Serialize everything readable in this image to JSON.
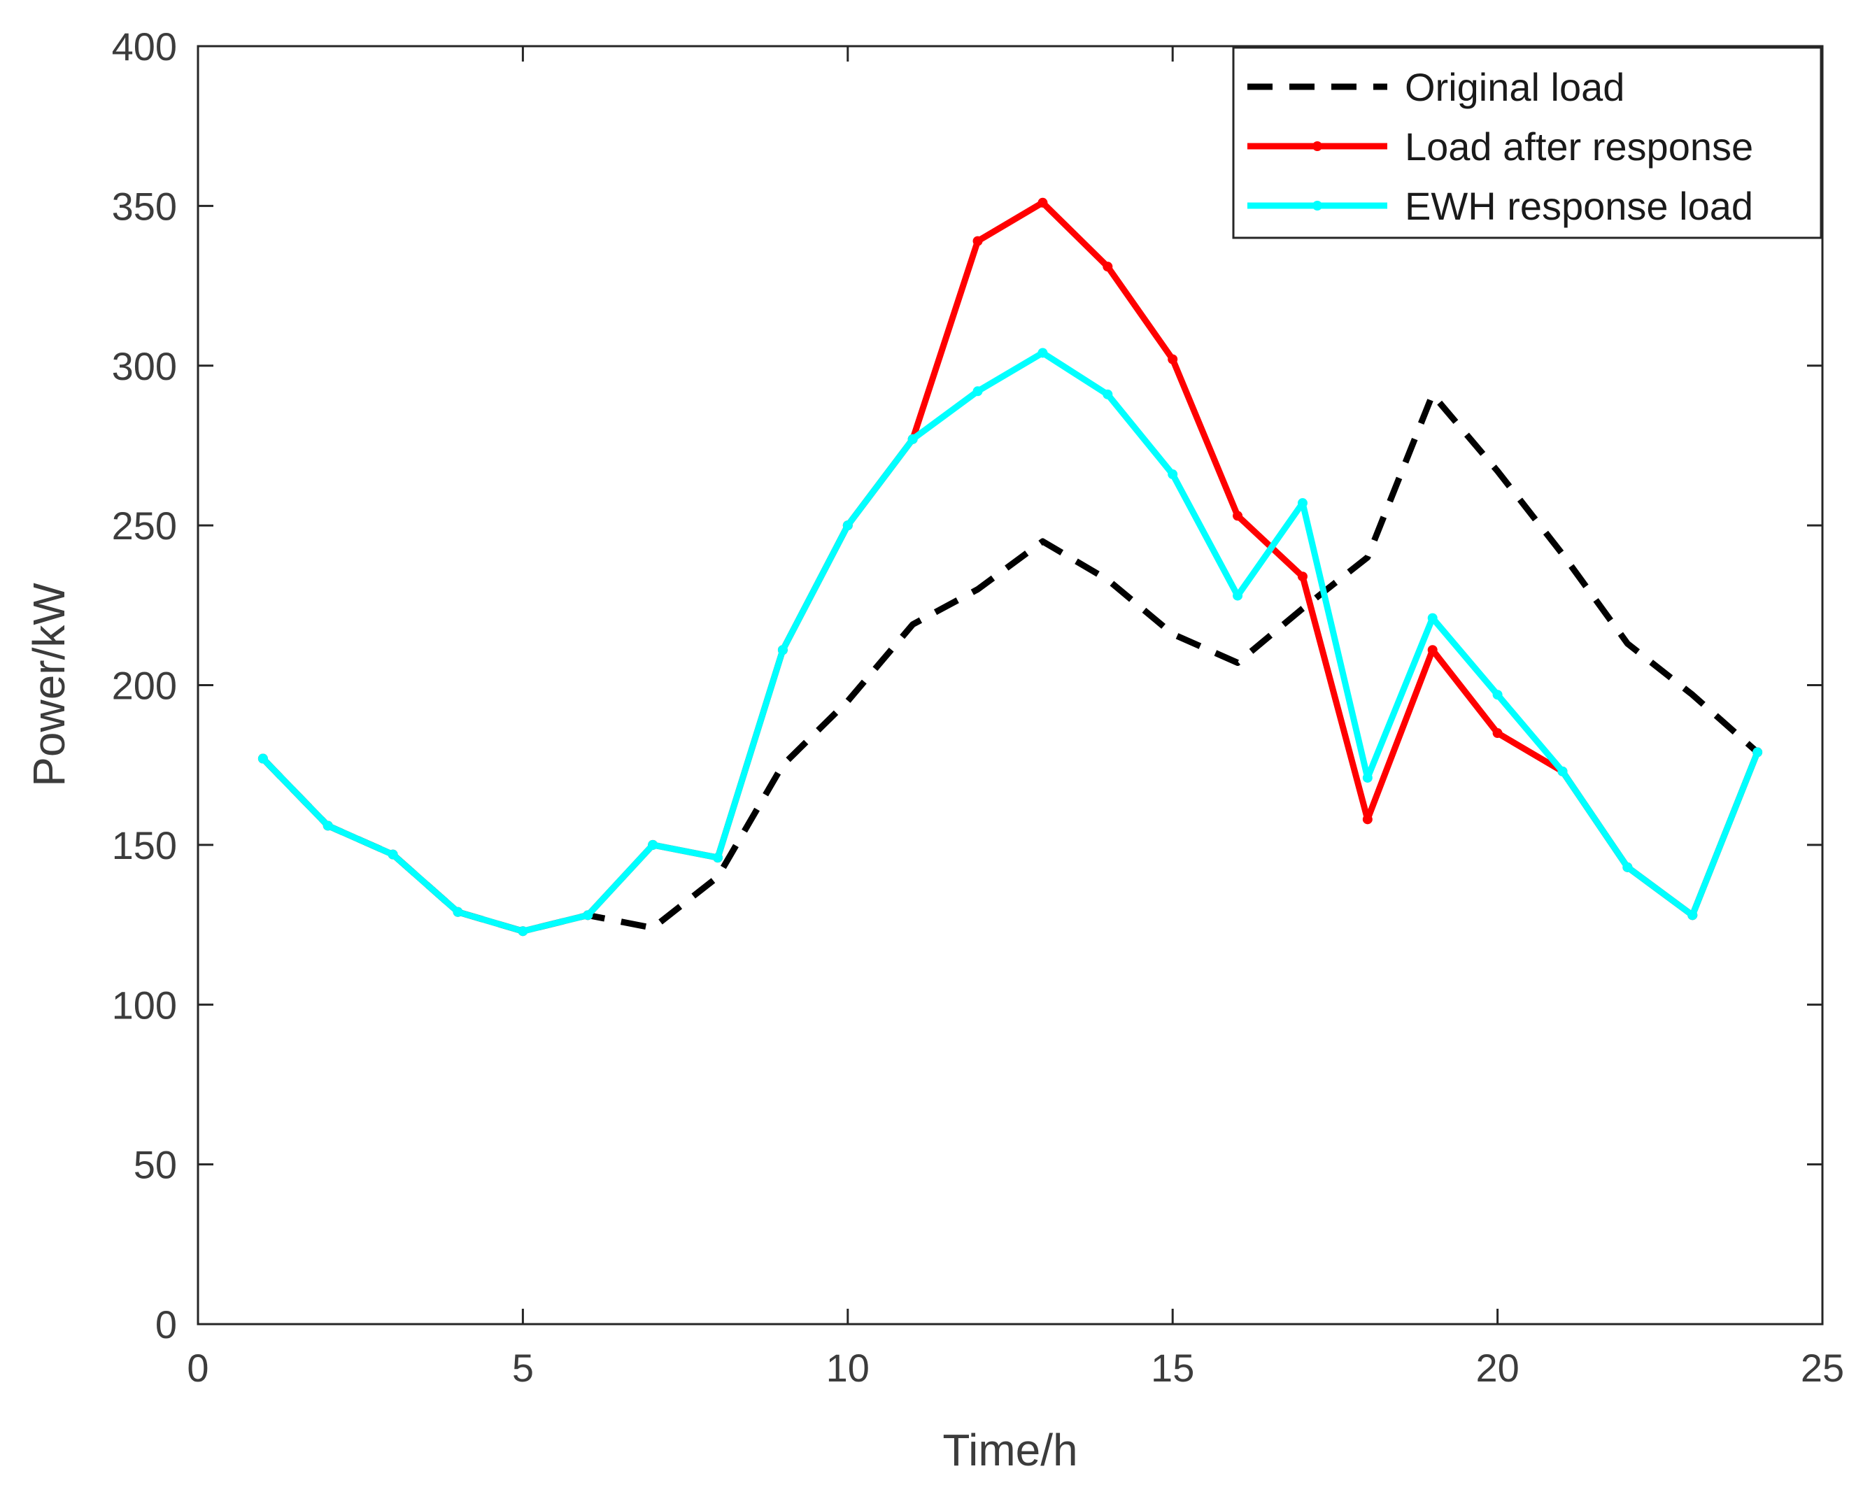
{
  "chart_data": {
    "type": "line",
    "title": "",
    "xlabel": "Time/h",
    "ylabel": "Power/kW",
    "xlim": [
      0,
      25
    ],
    "ylim": [
      0,
      400
    ],
    "xticks": [
      0,
      5,
      10,
      15,
      20,
      25
    ],
    "yticks": [
      0,
      50,
      100,
      150,
      200,
      250,
      300,
      350,
      400
    ],
    "x_tick_labels": [
      "0",
      "5",
      "10",
      "15",
      "20",
      "25"
    ],
    "y_tick_labels": [
      "0",
      "50",
      "100",
      "150",
      "200",
      "250",
      "300",
      "350",
      "400"
    ],
    "grid": false,
    "legend_position": "top-right",
    "x": [
      1,
      2,
      3,
      4,
      5,
      6,
      7,
      8,
      9,
      10,
      11,
      12,
      13,
      14,
      15,
      16,
      17,
      18,
      19,
      20,
      21,
      22,
      23,
      24
    ],
    "series": [
      {
        "name": "Original load",
        "color": "#000000",
        "style": "dashed",
        "values": [
          177,
          156,
          147,
          129,
          123,
          128,
          124,
          140,
          175,
          195,
          219,
          230,
          245,
          233,
          216,
          207,
          224,
          240,
          291,
          267,
          241,
          213,
          197,
          179
        ]
      },
      {
        "name": "Load after response",
        "color": "#ff0000",
        "style": "solid",
        "values": [
          177,
          156,
          147,
          129,
          123,
          128,
          150,
          146,
          211,
          250,
          277,
          339,
          351,
          331,
          302,
          253,
          234,
          158,
          211,
          185,
          173,
          143,
          128,
          179
        ]
      },
      {
        "name": "EWH response load",
        "color": "#00ffff",
        "style": "solid",
        "values": [
          177,
          156,
          147,
          129,
          123,
          128,
          150,
          146,
          211,
          250,
          277,
          292,
          304,
          291,
          266,
          228,
          257,
          171,
          221,
          197,
          173,
          143,
          128,
          179
        ]
      }
    ]
  }
}
